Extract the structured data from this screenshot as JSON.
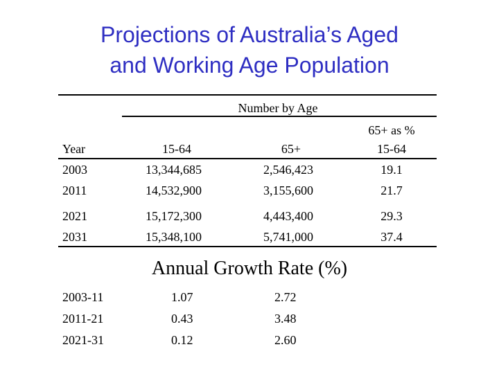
{
  "title": {
    "line1": "Projections of Australia’s Aged",
    "line2": "and Working Age Population"
  },
  "table": {
    "group_header": "Number by Age",
    "headers": {
      "year": "Year",
      "age_15_64": "15-64",
      "age_65": "65+",
      "ratio_line1": "65+ as %",
      "ratio_line2": "15-64"
    },
    "rows": [
      {
        "year": "2003",
        "age_15_64": "13,344,685",
        "age_65": "2,546,423",
        "ratio": "19.1"
      },
      {
        "year": "2011",
        "age_15_64": "14,532,900",
        "age_65": "3,155,600",
        "ratio": "21.7"
      },
      {
        "year": "2021",
        "age_15_64": "15,172,300",
        "age_65": "4,443,400",
        "ratio": "29.3"
      },
      {
        "year": "2031",
        "age_15_64": "15,348,100",
        "age_65": "5,741,000",
        "ratio": "37.4"
      }
    ]
  },
  "growth": {
    "heading": "Annual Growth Rate (%)",
    "rows": [
      {
        "period": "2003-11",
        "age_15_64": "1.07",
        "age_65": "2.72"
      },
      {
        "period": "2011-21",
        "age_15_64": "0.43",
        "age_65": "3.48"
      },
      {
        "period": "2021-31",
        "age_15_64": "0.12",
        "age_65": "2.60"
      }
    ]
  }
}
